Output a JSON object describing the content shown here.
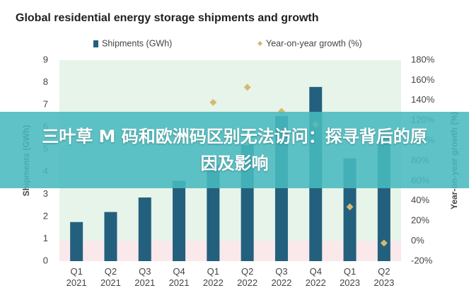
{
  "chart_data": {
    "type": "bar-line",
    "title": "Global residential energy storage shipments and growth",
    "categories": [
      "Q1 2021",
      "Q2 2021",
      "Q3 2021",
      "Q4 2021",
      "Q1 2022",
      "Q2 2022",
      "Q3 2022",
      "Q4 2022",
      "Q1 2023",
      "Q2 2023"
    ],
    "series": [
      {
        "name": "Shipments (GWh)",
        "color": "#23607e",
        "values": [
          1.75,
          2.2,
          2.85,
          3.6,
          4.3,
          5.2,
          6.5,
          7.8,
          4.6,
          5.5
        ]
      },
      {
        "name": "Year-on-year growth (%)",
        "color": "#d6b873",
        "axis": "y2",
        "values": [
          null,
          null,
          null,
          null,
          138,
          153,
          129,
          116,
          34,
          -2
        ]
      }
    ],
    "ylabel": "Shipments (GWh)",
    "y2label": "Year-on-year growth (%)",
    "ylim": [
      0,
      9
    ],
    "yticks": [
      0,
      1,
      2,
      3,
      4,
      5,
      6,
      7,
      8,
      9
    ],
    "y2lim": [
      -20,
      180
    ],
    "y2ticks": [
      {
        "value": -20,
        "label": "-20%"
      },
      {
        "value": 0,
        "label": "0%"
      },
      {
        "value": 20,
        "label": "20%"
      },
      {
        "value": 40,
        "label": "40%"
      },
      {
        "value": 60,
        "label": "60%"
      },
      {
        "value": 80,
        "label": "80%"
      },
      {
        "value": 100,
        "label": "100%"
      },
      {
        "value": 120,
        "label": "120%"
      },
      {
        "value": 140,
        "label": "140%"
      },
      {
        "value": 160,
        "label": "160%"
      },
      {
        "value": 180,
        "label": "180%"
      }
    ],
    "grid": false
  },
  "overlay": {
    "title": "三叶草 M 码和欧洲码区别无法访问：探寻背后的原因及影响"
  }
}
